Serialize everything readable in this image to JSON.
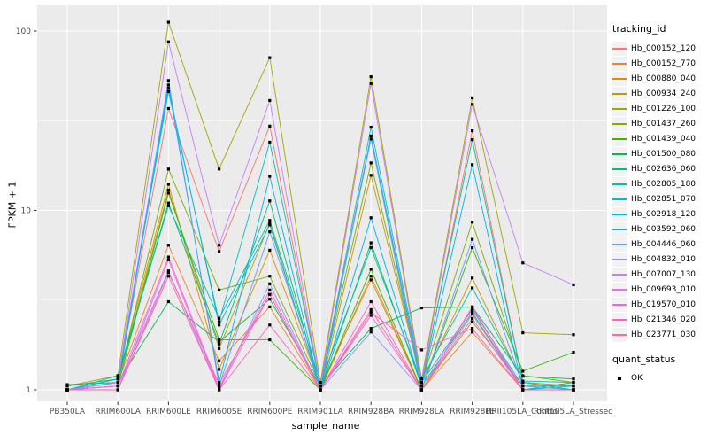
{
  "chart_data": {
    "type": "line",
    "title": "",
    "xlabel": "sample_name",
    "ylabel": "FPKM + 1",
    "y_scale": "log10",
    "ylim": [
      0.95,
      130
    ],
    "yticks": [
      1,
      10,
      100
    ],
    "y_minor_gridlines": [
      3.162,
      31.62
    ],
    "grid": "on",
    "legend_position": "right",
    "panel_background": "#EBEBEB",
    "gridline_color": "#FFFFFF",
    "tick_label_color": "#4D4D4D",
    "point_shape": "small-black-square",
    "categories": [
      "PB350LA",
      "RRIM600LA",
      "RRIM600LE",
      "RRIM600SE",
      "RRIM600PE",
      "RRIM901LA",
      "RRIM928BA",
      "RRIM928LA",
      "RRIM928LE",
      "RRII105LA_Control",
      "RRII105LA_Stressed"
    ],
    "series": [
      {
        "name": "Hb_000152_120",
        "color": "#F8766D",
        "values": [
          1.0,
          1.1,
          37,
          5.9,
          29.5,
          1.05,
          26,
          1.05,
          27.8,
          1.1,
          1.05
        ]
      },
      {
        "name": "Hb_000152_770",
        "color": "#EA8331",
        "values": [
          1.0,
          1.1,
          6.4,
          1.45,
          2.9,
          1.0,
          4.3,
          1.0,
          2.1,
          1.0,
          1.0
        ]
      },
      {
        "name": "Hb_000880_040",
        "color": "#D89000",
        "values": [
          1.0,
          1.15,
          14,
          1.3,
          6.0,
          1.05,
          4.1,
          1.0,
          2.4,
          1.05,
          1.0
        ]
      },
      {
        "name": "Hb_000934_240",
        "color": "#C09B00",
        "values": [
          1.0,
          1.1,
          13,
          1.7,
          8.5,
          1.0,
          15.7,
          1.1,
          4.2,
          1.1,
          1.05
        ]
      },
      {
        "name": "Hb_001226_100",
        "color": "#A3A500",
        "values": [
          1.05,
          1.2,
          112,
          17,
          71,
          1.1,
          55.6,
          1.15,
          42.4,
          2.08,
          2.03
        ]
      },
      {
        "name": "Hb_001437_260",
        "color": "#7CAE00",
        "values": [
          1.0,
          1.1,
          17,
          3.6,
          4.3,
          1.05,
          18.4,
          1.1,
          8.6,
          1.2,
          1.1
        ]
      },
      {
        "name": "Hb_001439_040",
        "color": "#39B600",
        "values": [
          1.0,
          1.05,
          12.5,
          1.9,
          1.9,
          1.0,
          4.7,
          1.0,
          6.2,
          1.27,
          1.62
        ]
      },
      {
        "name": "Hb_001500_080",
        "color": "#00BB4E",
        "values": [
          1.07,
          1.1,
          3.1,
          1.85,
          3.2,
          1.05,
          2.2,
          2.86,
          2.9,
          1.19,
          1.15
        ]
      },
      {
        "name": "Hb_002636_060",
        "color": "#00BF7D",
        "values": [
          1.05,
          1.15,
          11,
          1.8,
          11.3,
          1.0,
          6.6,
          1.05,
          2.7,
          1.0,
          1.1
        ]
      },
      {
        "name": "Hb_002805_180",
        "color": "#00C1A3",
        "values": [
          1.0,
          1.2,
          10.6,
          2.5,
          8.8,
          1.1,
          6.2,
          1.1,
          24.8,
          1.1,
          1.0
        ]
      },
      {
        "name": "Hb_002851_070",
        "color": "#00BFC4",
        "values": [
          1.0,
          1.15,
          46,
          2.4,
          24,
          1.05,
          29.1,
          1.15,
          3.7,
          1.12,
          1.1
        ]
      },
      {
        "name": "Hb_002918_120",
        "color": "#00BAE0",
        "values": [
          1.0,
          1.1,
          48,
          2.3,
          8.3,
          1.0,
          26,
          1.1,
          2.8,
          1.05,
          1.05
        ]
      },
      {
        "name": "Hb_003592_060",
        "color": "#00B0F6",
        "values": [
          1.0,
          1.05,
          50,
          1.1,
          15.5,
          1.0,
          9.1,
          1.05,
          18,
          1.0,
          1.05
        ]
      },
      {
        "name": "Hb_004446_060",
        "color": "#619CFF",
        "values": [
          1.0,
          1.1,
          53,
          1.05,
          7.6,
          1.05,
          25,
          1.0,
          6.9,
          1.05,
          1.0
        ]
      },
      {
        "name": "Hb_004832_010",
        "color": "#9590FF",
        "values": [
          1.0,
          1.05,
          4.6,
          1.0,
          3.9,
          1.0,
          2.1,
          1.0,
          2.5,
          1.0,
          1.0
        ]
      },
      {
        "name": "Hb_007007_130",
        "color": "#C77CFF",
        "values": [
          1.0,
          1.1,
          87,
          6.4,
          41,
          1.05,
          51,
          1.1,
          39,
          5.1,
          3.85
        ]
      },
      {
        "name": "Hb_009693_010",
        "color": "#E76BF3",
        "values": [
          1.0,
          1.05,
          5.5,
          1.03,
          3.6,
          1.0,
          2.6,
          1.0,
          2.9,
          1.0,
          1.0
        ]
      },
      {
        "name": "Hb_019570_010",
        "color": "#FA62DB",
        "values": [
          1.0,
          1.0,
          5.3,
          1.0,
          3.4,
          1.0,
          3.1,
          1.0,
          2.85,
          1.0,
          1.0
        ]
      },
      {
        "name": "Hb_021346_020",
        "color": "#FF62BC",
        "values": [
          1.0,
          1.0,
          4.3,
          1.0,
          2.3,
          1.0,
          2.7,
          1.67,
          2.2,
          1.0,
          1.0
        ]
      },
      {
        "name": "Hb_023771_030",
        "color": "#FF6A98",
        "values": [
          1.0,
          1.0,
          4.5,
          1.08,
          3.4,
          1.0,
          2.8,
          1.0,
          2.64,
          1.0,
          1.0
        ]
      }
    ]
  },
  "legend": {
    "tracking_title": "tracking_id",
    "quant_title": "quant_status",
    "quant_items": [
      {
        "label": "OK",
        "marker": "black-square"
      }
    ]
  }
}
